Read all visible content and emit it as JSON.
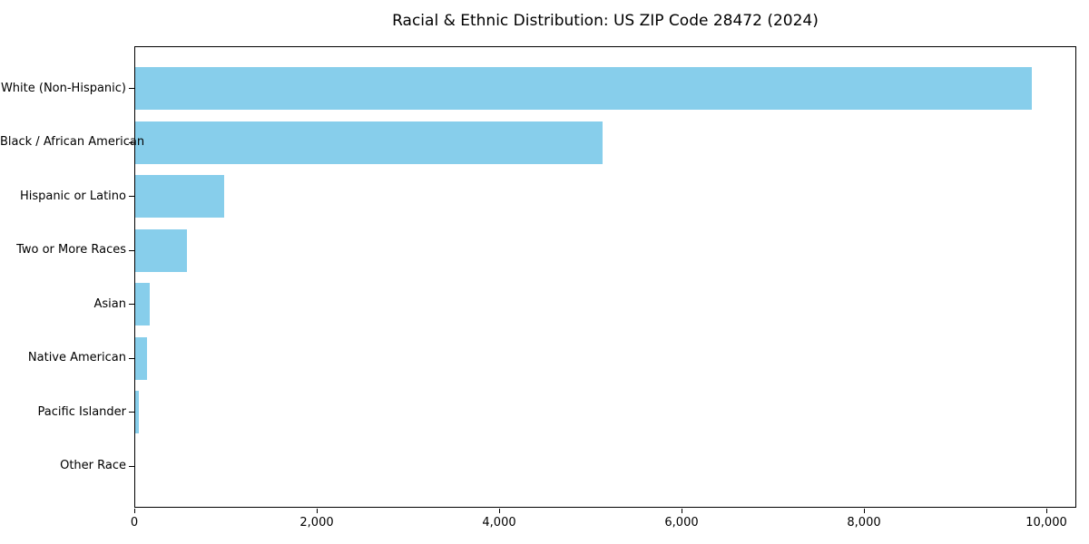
{
  "chart_data": {
    "type": "bar",
    "orientation": "horizontal",
    "title": "Racial & Ethnic Distribution: US ZIP Code 28472 (2024)",
    "categories": [
      "White (Non-Hispanic)",
      "Black / African American",
      "Hispanic or Latino",
      "Two or More Races",
      "Asian",
      "Native American",
      "Pacific Islander",
      "Other Race"
    ],
    "values": [
      9830,
      5120,
      975,
      565,
      160,
      130,
      40,
      0
    ],
    "xlabel": "",
    "ylabel": "",
    "xlim": [
      0,
      10325
    ],
    "x_ticks": [
      0,
      2000,
      4000,
      6000,
      8000,
      10000
    ],
    "x_tick_labels": [
      "0",
      "2,000",
      "4,000",
      "6,000",
      "8,000",
      "10,000"
    ],
    "bar_color": "#87CEEB",
    "grid": false,
    "legend": null
  }
}
